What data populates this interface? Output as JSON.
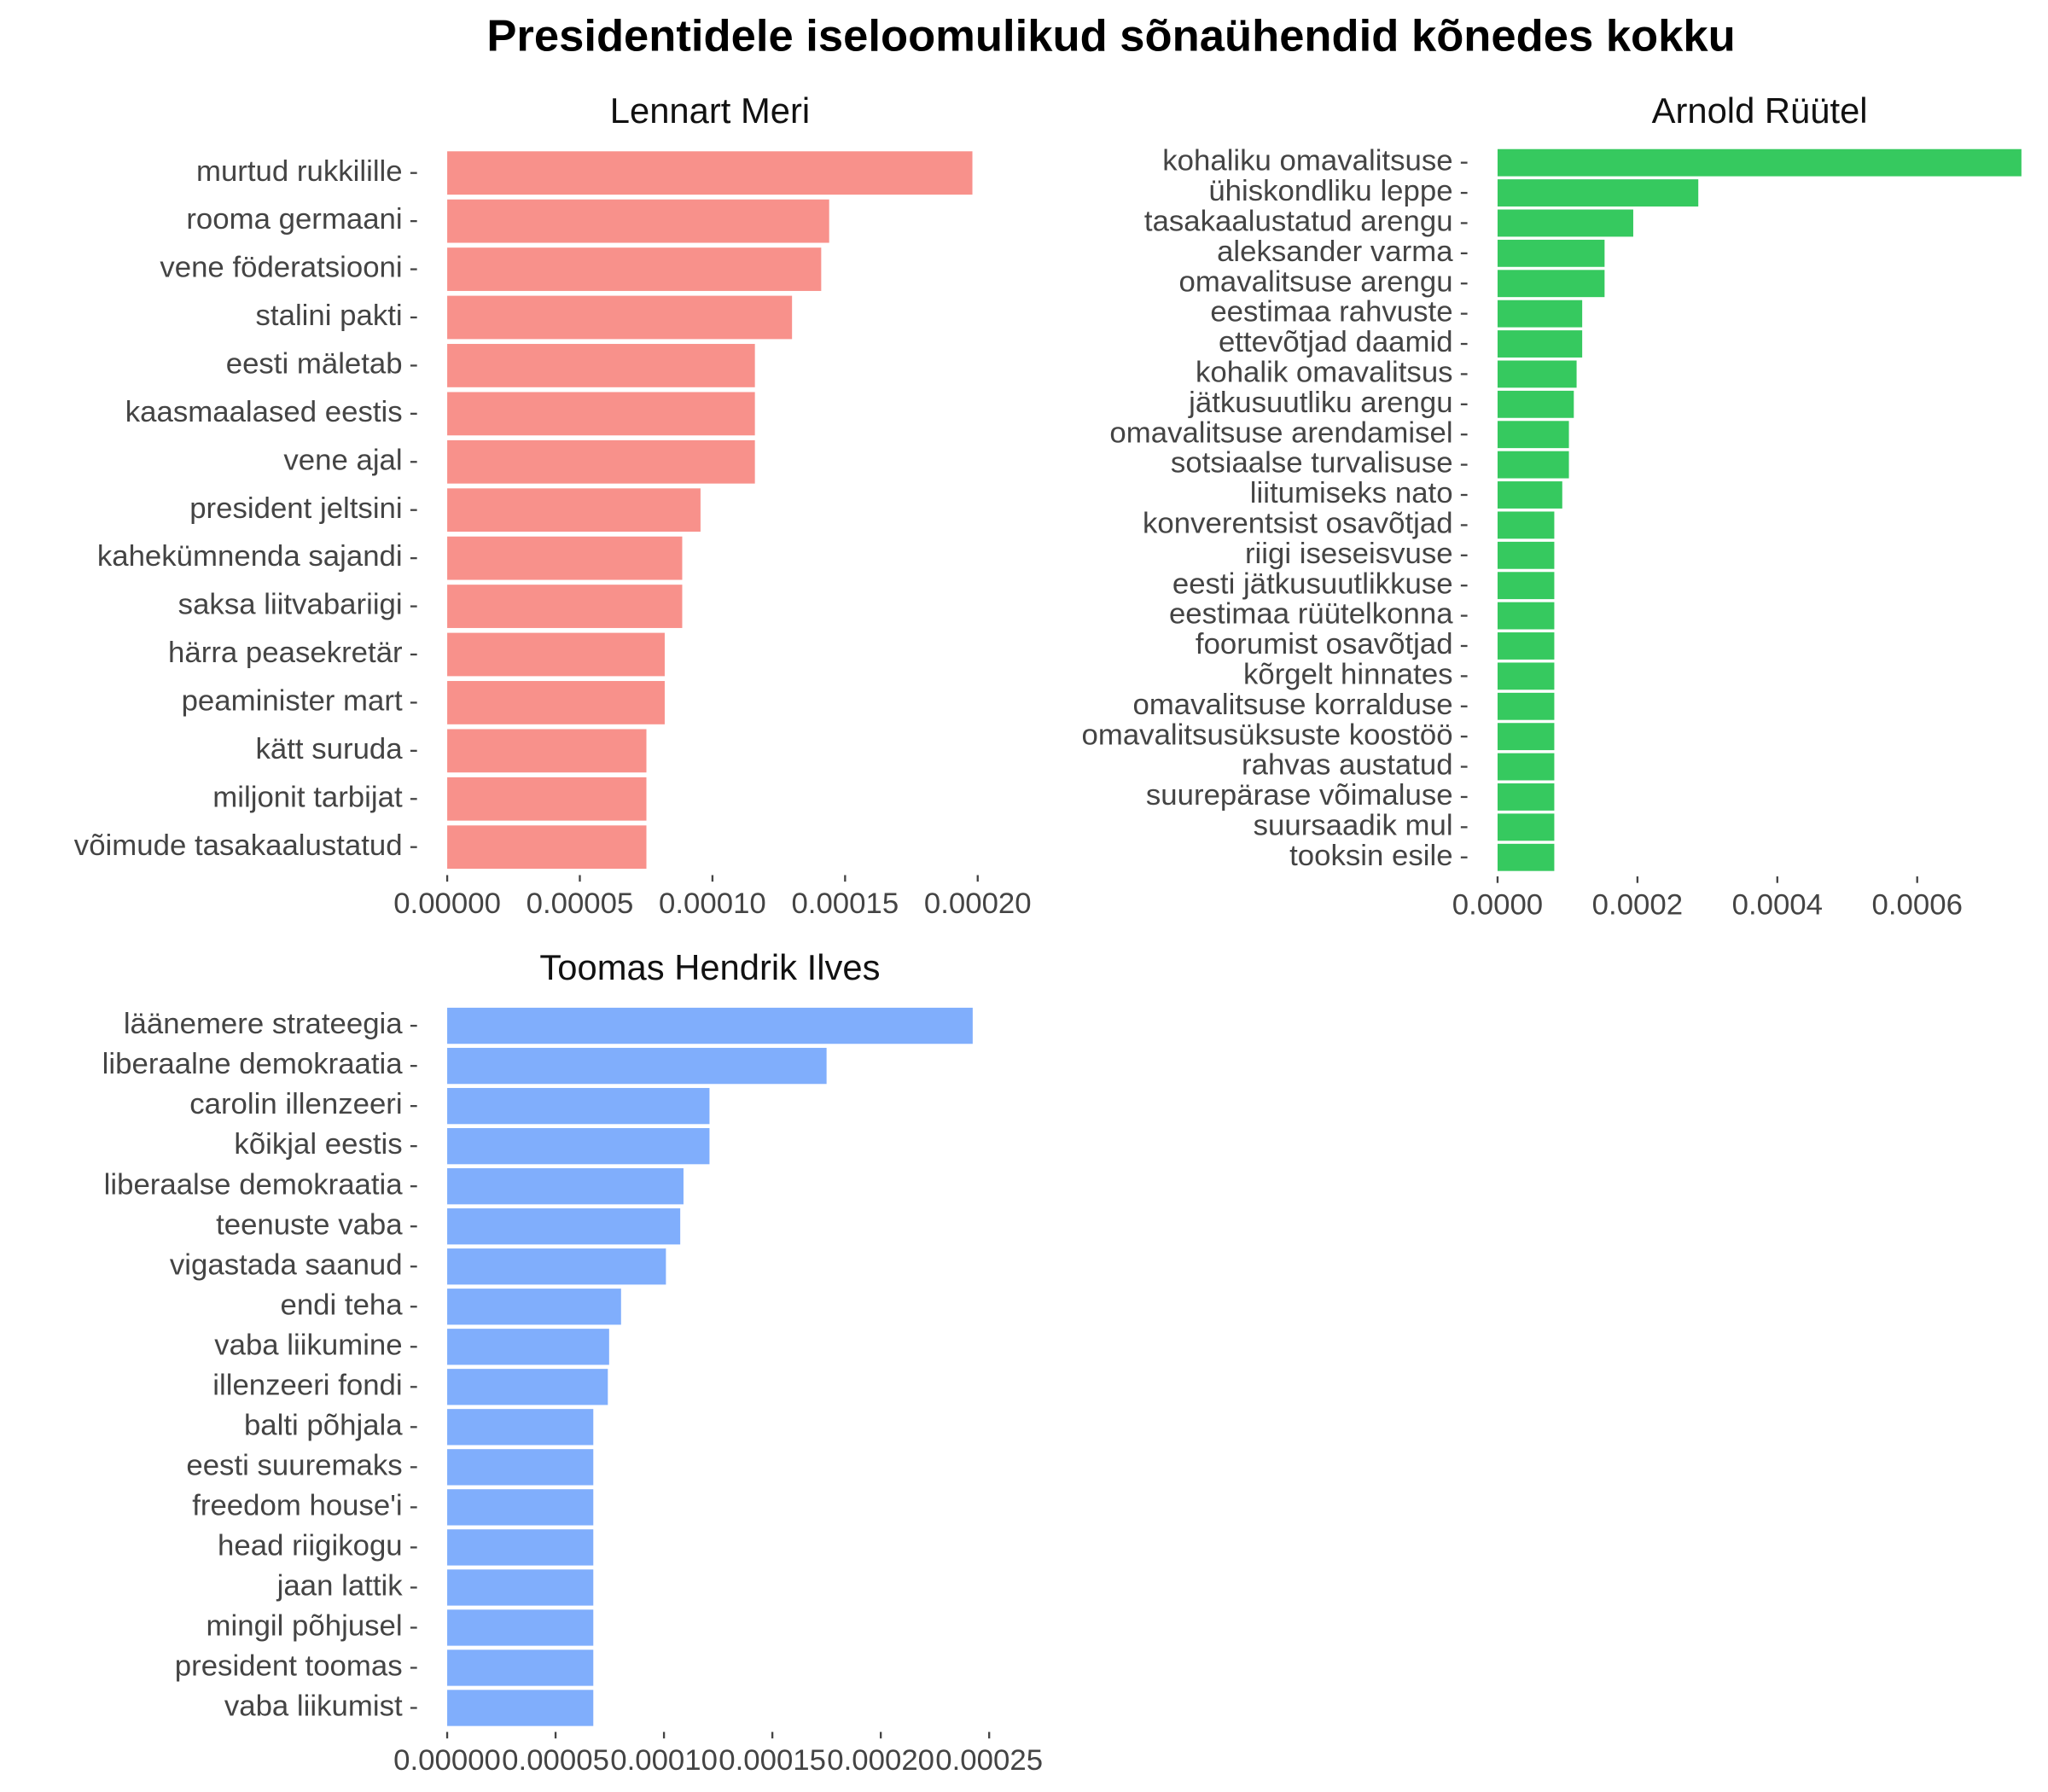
{
  "title": "Presidentidele iseloomulikud sõnaühendid kõnedes kokku",
  "chart_data": [
    {
      "type": "bar",
      "orientation": "horizontal",
      "title": "Lennart Meri",
      "color": "#f8918b",
      "categories": [
        "murtud rukkilille",
        "rooma germaani",
        "vene föderatsiooni",
        "stalini pakti",
        "eesti mäletab",
        "kaasmaalased eestis",
        "vene ajal",
        "president jeltsini",
        "kahekümnenda sajandi",
        "saksa liitvabariigi",
        "härra peasekretär",
        "peaminister mart",
        "kätt suruda",
        "miljonit tarbijat",
        "võimude tasakaalustatud"
      ],
      "values": [
        0.000198,
        0.000144,
        0.000141,
        0.00013,
        0.000116,
        0.000116,
        0.000116,
        9.55e-05,
        8.86e-05,
        8.86e-05,
        8.2e-05,
        8.2e-05,
        7.51e-05,
        7.51e-05,
        7.51e-05
      ],
      "xlim": [
        -9.9e-06,
        0.000208
      ],
      "xticks": [
        {
          "value": 0,
          "label": "0.00000"
        },
        {
          "value": 5e-05,
          "label": "0.00005"
        },
        {
          "value": 0.0001,
          "label": "0.00010"
        },
        {
          "value": 0.00015,
          "label": "0.00015"
        },
        {
          "value": 0.0002,
          "label": "0.00020"
        }
      ]
    },
    {
      "type": "bar",
      "orientation": "horizontal",
      "title": "Arnold Rüütel",
      "color": "#36c95f",
      "categories": [
        "kohaliku omavalitsuse",
        "ühiskondliku leppe",
        "tasakaalustatud arengu",
        "aleksander varma",
        "omavalitsuse arengu",
        "eestimaa rahvuste",
        "ettevõtjad daamid",
        "kohalik omavalitsus",
        "jätkusuutliku arengu",
        "omavalitsuse arendamisel",
        "sotsiaalse turvalisuse",
        "liitumiseks nato",
        "konverentsist osavõtjad",
        "riigi iseseisvuse",
        "eesti jätkusuutlikkuse",
        "eestimaa rüütelkonna",
        "foorumist osavõtjad",
        "kõrgelt hinnates",
        "omavalitsuse korralduse",
        "omavalitsusüksuste koostöö",
        "rahvas austatud",
        "suurepärase võimaluse",
        "suursaadik mul",
        "tooksin esile"
      ],
      "values": [
        0.000749,
        0.000287,
        0.000194,
        0.000153,
        0.000153,
        0.000121,
        0.000121,
        0.000113,
        0.000109,
        0.000102,
        0.000102,
        9.25e-05,
        8.11e-05,
        8.11e-05,
        8.11e-05,
        8.11e-05,
        8.11e-05,
        8.11e-05,
        8.11e-05,
        8.11e-05,
        8.11e-05,
        8.11e-05,
        8.11e-05,
        8.11e-05
      ],
      "xlim": [
        -3.75e-05,
        0.000787
      ],
      "xticks": [
        {
          "value": 0,
          "label": "0.0000"
        },
        {
          "value": 0.0002,
          "label": "0.0002"
        },
        {
          "value": 0.0004,
          "label": "0.0004"
        },
        {
          "value": 0.0006,
          "label": "0.0006"
        }
      ]
    },
    {
      "type": "bar",
      "orientation": "horizontal",
      "title": "Toomas Hendrik Ilves",
      "color": "#80aefc",
      "categories": [
        "läänemere strateegia",
        "liberaalne demokraatia",
        "carolin illenzeeri",
        "kõikjal eestis",
        "liberaalse demokraatia",
        "teenuste vaba",
        "vigastada saanud",
        "endi teha",
        "vaba liikumine",
        "illenzeeri fondi",
        "balti põhjala",
        "eesti suuremaks",
        "freedom house'i",
        "head riigikogu",
        "jaan lattik",
        "mingil põhjusel",
        "president toomas",
        "vaba liikumist"
      ],
      "values": [
        0.0002424,
        0.000175,
        0.000121,
        0.000121,
        0.000109,
        0.0001075,
        0.0001009,
        8.02e-05,
        7.47e-05,
        7.41e-05,
        6.74e-05,
        6.74e-05,
        6.74e-05,
        6.74e-05,
        6.74e-05,
        6.74e-05,
        6.74e-05,
        6.74e-05
      ],
      "xlim": [
        -1.21e-05,
        0.0002545
      ],
      "xticks": [
        {
          "value": 0,
          "label": "0.00000"
        },
        {
          "value": 5e-05,
          "label": "0.00005"
        },
        {
          "value": 0.0001,
          "label": "0.00010"
        },
        {
          "value": 0.00015,
          "label": "0.00015"
        },
        {
          "value": 0.0002,
          "label": "0.00020"
        },
        {
          "value": 0.00025,
          "label": "0.00025"
        }
      ]
    }
  ]
}
